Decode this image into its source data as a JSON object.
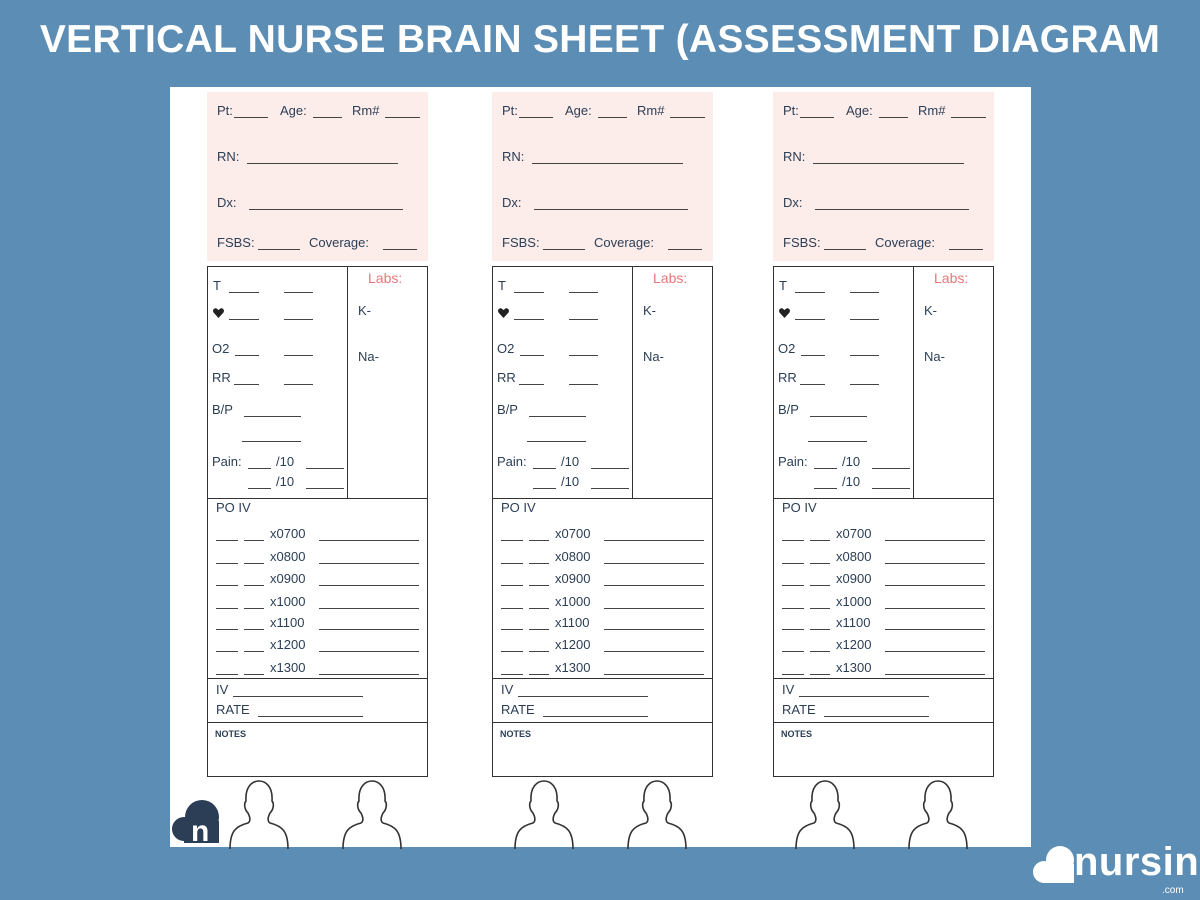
{
  "title": "VERTICAL NURSE BRAIN SHEET (ASSESSMENT DIAGRAM",
  "sheet": {
    "columns_count": 3,
    "header": {
      "pt": "Pt:",
      "age": "Age:",
      "rm": "Rm#",
      "rn": "RN:",
      "dx": "Dx:",
      "fsbs": "FSBS:",
      "coverage": "Coverage:"
    },
    "vitals": {
      "t": "T",
      "heart_icon": "heart-icon",
      "o2": "O2",
      "rr": "RR",
      "bp": "B/P",
      "pain": "Pain:",
      "per10": "/10"
    },
    "labs": {
      "title": "Labs:",
      "k": "K-",
      "na": "Na-"
    },
    "meds": {
      "header": "PO  IV",
      "times": [
        "x0700",
        "x0800",
        "x0900",
        "x1000",
        "x1100",
        "x1200",
        "x1300"
      ]
    },
    "iv": {
      "iv": "IV",
      "rate": "RATE"
    },
    "notes": "NOTES"
  },
  "colors": {
    "background": "#5b8db5",
    "header_fill": "#fcecea",
    "labs_title": "#e8777a",
    "text": "#2b3e55"
  },
  "logo_small": "n",
  "brand": {
    "name": "nursing",
    "suffix": ".com"
  }
}
